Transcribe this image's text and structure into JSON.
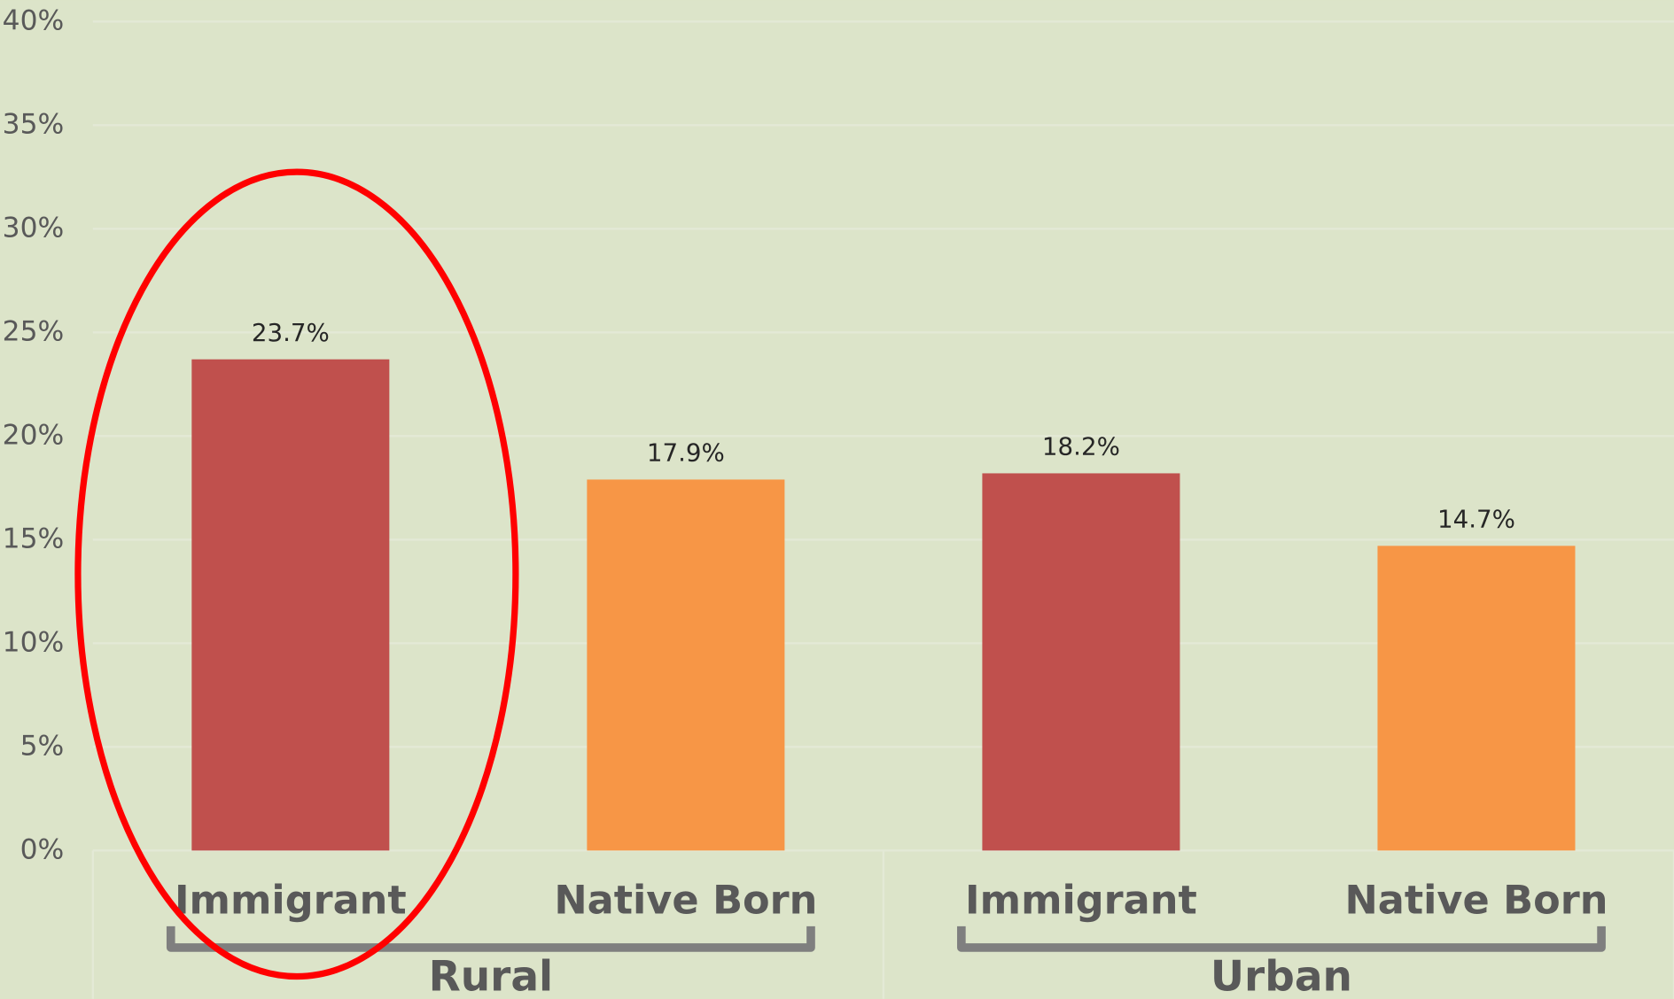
{
  "chart_data": {
    "type": "bar",
    "categories": [
      "Immigrant",
      "Native Born",
      "Immigrant",
      "Native Born"
    ],
    "groups": [
      "Rural",
      "Urban"
    ],
    "values": [
      23.7,
      17.9,
      18.2,
      14.7
    ],
    "value_labels": [
      "23.7%",
      "17.9%",
      "18.2%",
      "14.7%"
    ],
    "colors": [
      "#c0504d",
      "#f79646",
      "#c0504d",
      "#f79646"
    ],
    "ylim": [
      0,
      40
    ],
    "yticks": [
      {
        "value": 0,
        "label": "0%"
      },
      {
        "value": 5,
        "label": "5%"
      },
      {
        "value": 10,
        "label": "10%"
      },
      {
        "value": 15,
        "label": "15%"
      },
      {
        "value": 20,
        "label": "20%"
      },
      {
        "value": 25,
        "label": "25%"
      },
      {
        "value": 30,
        "label": "30%"
      },
      {
        "value": 35,
        "label": "35%"
      },
      {
        "value": 40,
        "label": "40%"
      }
    ],
    "grid": true
  }
}
